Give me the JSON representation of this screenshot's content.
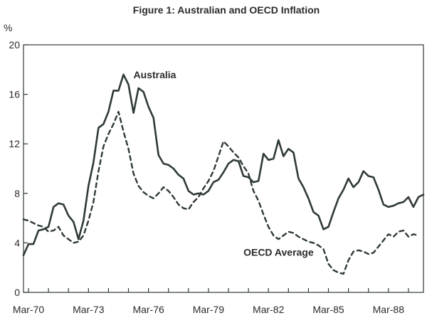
{
  "chart_data": {
    "type": "line",
    "title": "Figure 1: Australian and OECD Inflation",
    "ylabel": "%",
    "xlabel": "",
    "ylim": [
      0,
      20
    ],
    "yticks": [
      0,
      4,
      8,
      12,
      16,
      20
    ],
    "xlim": [
      1970.0,
      1990.0
    ],
    "xticks": [
      {
        "label": "Mar-70",
        "x": 1970.25
      },
      {
        "label": "Mar-73",
        "x": 1973.25
      },
      {
        "label": "Mar-76",
        "x": 1976.25
      },
      {
        "label": "Mar-79",
        "x": 1979.25
      },
      {
        "label": "Mar-82",
        "x": 1982.25
      },
      {
        "label": "Mar-85",
        "x": 1985.25
      },
      {
        "label": "Mar-88",
        "x": 1988.25
      }
    ],
    "grid": false,
    "series": [
      {
        "name": "Australia",
        "style": "solid",
        "color": "#2f3a36",
        "x": [
          1970.0,
          1970.25,
          1970.5,
          1970.75,
          1971.0,
          1971.25,
          1971.5,
          1971.75,
          1972.0,
          1972.25,
          1972.5,
          1972.75,
          1973.0,
          1973.25,
          1973.5,
          1973.75,
          1974.0,
          1974.25,
          1974.5,
          1974.75,
          1975.0,
          1975.25,
          1975.5,
          1975.75,
          1976.0,
          1976.25,
          1976.5,
          1976.75,
          1977.0,
          1977.25,
          1977.5,
          1977.75,
          1978.0,
          1978.25,
          1978.5,
          1978.75,
          1979.0,
          1979.25,
          1979.5,
          1979.75,
          1980.0,
          1980.25,
          1980.5,
          1980.75,
          1981.0,
          1981.25,
          1981.5,
          1981.75,
          1982.0,
          1982.25,
          1982.5,
          1982.75,
          1983.0,
          1983.25,
          1983.5,
          1983.75,
          1984.0,
          1984.25,
          1984.5,
          1984.75,
          1985.0,
          1985.25,
          1985.5,
          1985.75,
          1986.0,
          1986.25,
          1986.5,
          1986.75,
          1987.0,
          1987.25,
          1987.5,
          1987.75,
          1988.0,
          1988.25,
          1988.5,
          1988.75,
          1989.0,
          1989.25,
          1989.5,
          1989.75,
          1990.0
        ],
        "y": [
          3.0,
          3.9,
          3.9,
          5.0,
          5.1,
          5.3,
          6.9,
          7.2,
          7.1,
          6.2,
          5.7,
          4.3,
          5.8,
          8.6,
          10.5,
          13.3,
          13.6,
          14.6,
          16.3,
          16.3,
          17.6,
          16.8,
          14.5,
          16.5,
          16.2,
          15.0,
          14.1,
          11.1,
          10.4,
          10.3,
          10.0,
          9.5,
          9.2,
          8.2,
          7.9,
          8.0,
          7.9,
          8.2,
          8.9,
          9.1,
          9.7,
          10.4,
          10.7,
          10.6,
          9.4,
          9.3,
          8.9,
          9.0,
          11.2,
          10.7,
          10.8,
          12.3,
          11.0,
          11.6,
          11.3,
          9.2,
          8.5,
          7.6,
          6.5,
          6.2,
          5.1,
          5.3,
          6.5,
          7.6,
          8.3,
          9.2,
          8.5,
          8.9,
          9.8,
          9.4,
          9.3,
          8.3,
          7.1,
          6.9,
          7.0,
          7.2,
          7.3,
          7.7,
          6.9,
          7.7,
          7.9
        ]
      },
      {
        "name": "OECD Average",
        "style": "dashed",
        "color": "#2f3a36",
        "x": [
          1970.0,
          1970.25,
          1970.5,
          1970.75,
          1971.0,
          1971.25,
          1971.5,
          1971.75,
          1972.0,
          1972.25,
          1972.5,
          1972.75,
          1973.0,
          1973.25,
          1973.5,
          1973.75,
          1974.0,
          1974.25,
          1974.5,
          1974.75,
          1975.0,
          1975.25,
          1975.5,
          1975.75,
          1976.0,
          1976.25,
          1976.5,
          1976.75,
          1977.0,
          1977.25,
          1977.5,
          1977.75,
          1978.0,
          1978.25,
          1978.5,
          1978.75,
          1979.0,
          1979.25,
          1979.5,
          1979.75,
          1980.0,
          1980.25,
          1980.5,
          1980.75,
          1981.0,
          1981.25,
          1981.5,
          1981.75,
          1982.0,
          1982.25,
          1982.5,
          1982.75,
          1983.0,
          1983.25,
          1983.5,
          1983.75,
          1984.0,
          1984.25,
          1984.5,
          1984.75,
          1985.0,
          1985.25,
          1985.5,
          1985.75,
          1986.0,
          1986.25,
          1986.5,
          1986.75,
          1987.0,
          1987.25,
          1987.5,
          1987.75,
          1988.0,
          1988.25,
          1988.5,
          1988.75,
          1989.0,
          1989.25,
          1989.5,
          1989.75
        ],
        "y": [
          5.9,
          5.8,
          5.6,
          5.4,
          5.3,
          4.9,
          5.0,
          5.3,
          4.6,
          4.3,
          4.0,
          4.1,
          4.6,
          5.8,
          7.3,
          9.8,
          11.8,
          12.8,
          13.6,
          14.6,
          13.0,
          11.6,
          9.6,
          8.6,
          8.1,
          7.8,
          7.6,
          8.0,
          8.5,
          8.2,
          7.7,
          7.1,
          6.8,
          6.7,
          7.3,
          7.7,
          8.4,
          9.0,
          9.8,
          11.0,
          12.2,
          11.8,
          11.3,
          10.9,
          10.2,
          9.6,
          8.2,
          7.4,
          6.3,
          5.3,
          4.6,
          4.3,
          4.6,
          4.9,
          4.8,
          4.5,
          4.3,
          4.1,
          4.0,
          3.8,
          3.5,
          2.3,
          1.8,
          1.6,
          1.5,
          2.6,
          3.3,
          3.4,
          3.3,
          3.1,
          3.2,
          3.7,
          4.2,
          4.7,
          4.5,
          4.9,
          5.0,
          4.5,
          4.7,
          4.6
        ]
      }
    ],
    "annotations": [
      {
        "text": "Australia",
        "x": 1975.5,
        "y": 17.3
      },
      {
        "text": "OECD Average",
        "x": 1981.0,
        "y": 2.95
      }
    ]
  }
}
